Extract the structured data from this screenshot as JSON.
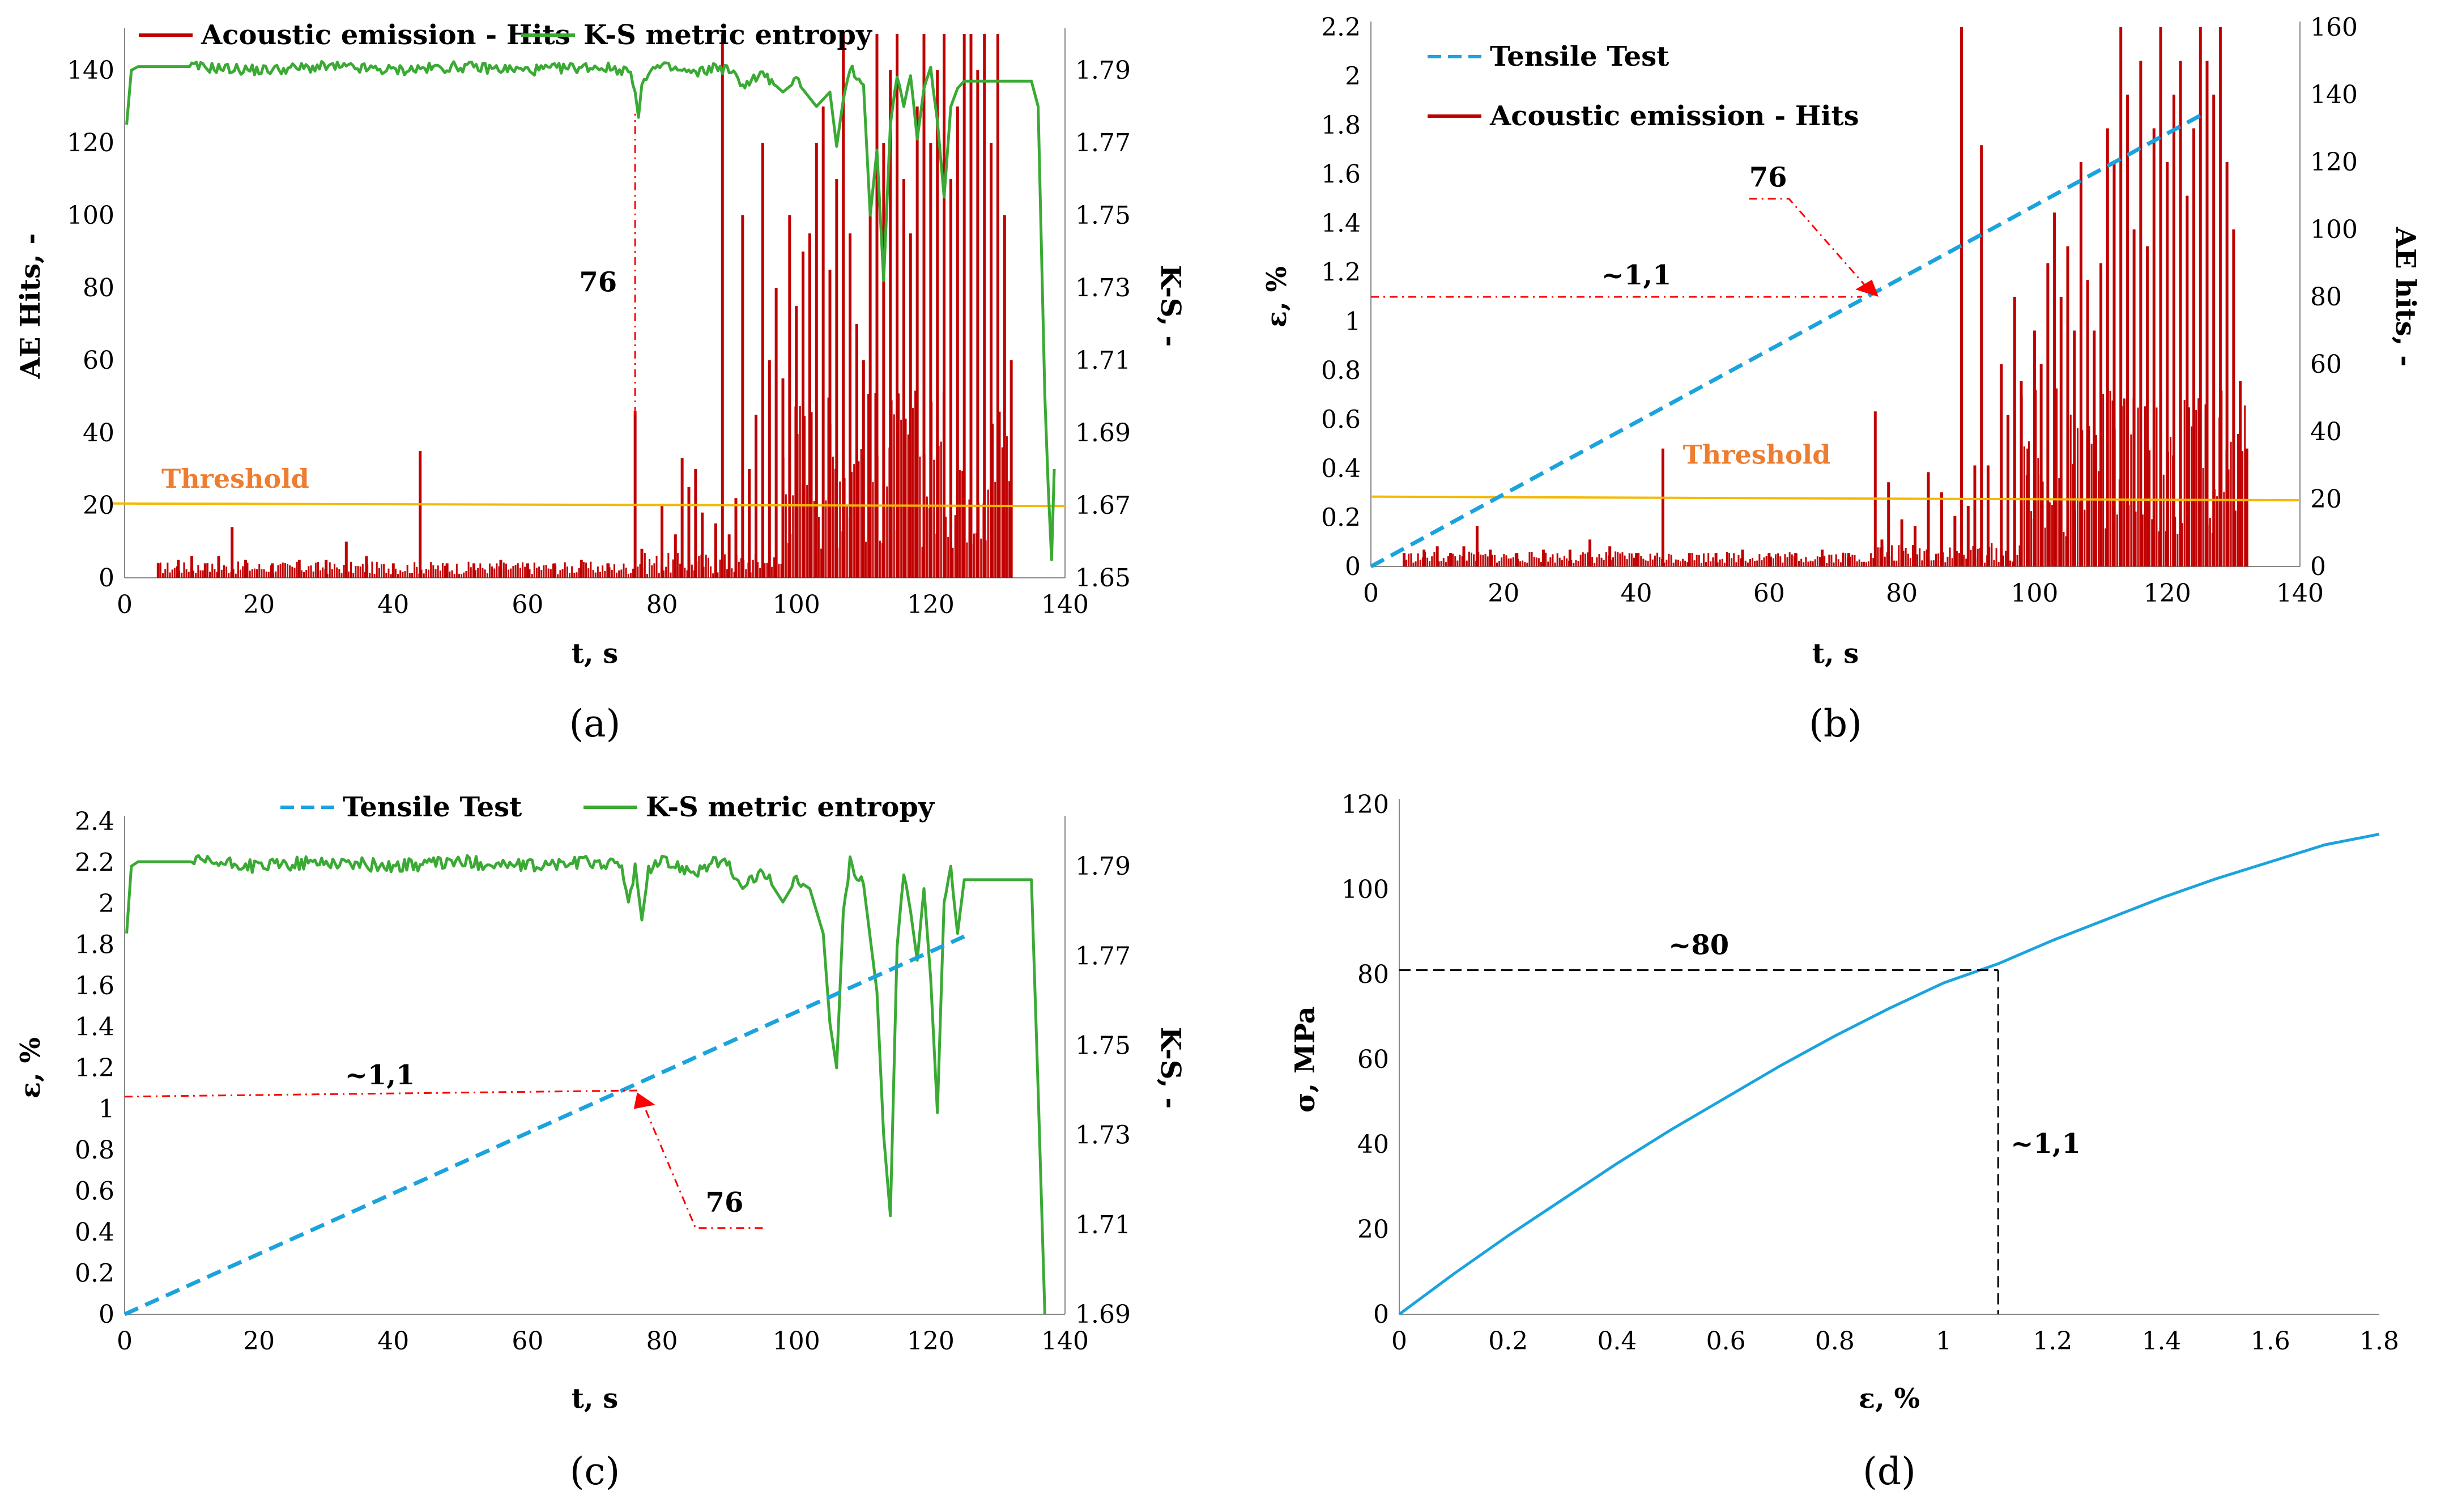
{
  "colors": {
    "ae_hits": "#c00000",
    "ks_entropy": "#3aaa35",
    "tensile": "#1ba3dd",
    "threshold_line": "#f5b800",
    "threshold_text": "#ed7d31",
    "annotation_red": "#ff0000",
    "annotation_black": "#000000"
  },
  "chart_data": [
    {
      "id": "a",
      "panel_label": "(a)",
      "type": "line",
      "xlabel": "t, s",
      "ylabel": "AE Hits, -",
      "y2label": "K-S, -",
      "xlim": [
        0,
        140
      ],
      "ylim": [
        0,
        150
      ],
      "y2lim": [
        1.65,
        1.8
      ],
      "xticks": [
        "0",
        "20",
        "40",
        "60",
        "80",
        "100",
        "120",
        "140"
      ],
      "yticks": [
        "0",
        "20",
        "40",
        "60",
        "80",
        "100",
        "120",
        "140"
      ],
      "y2ticks": [
        "1.65",
        "1.67",
        "1.69",
        "1.71",
        "1.73",
        "1.75",
        "1.77",
        "1.79"
      ],
      "legend": [
        "Acoustic emission - Hits",
        "K-S metric entropy"
      ],
      "threshold": {
        "label": "Threshold",
        "y_start": 20.5,
        "y_end": 19.8
      },
      "annotation": {
        "text": "76",
        "x": 76
      },
      "series": [
        {
          "name": "Acoustic emission - Hits",
          "axis": "left",
          "style": "bars",
          "spikes": [
            [
              5,
              4
            ],
            [
              8,
              5
            ],
            [
              10,
              6
            ],
            [
              12,
              4
            ],
            [
              14,
              6
            ],
            [
              16,
              14
            ],
            [
              18,
              5
            ],
            [
              22,
              4
            ],
            [
              26,
              5
            ],
            [
              30,
              5
            ],
            [
              33,
              10
            ],
            [
              36,
              6
            ],
            [
              40,
              4
            ],
            [
              44,
              35
            ],
            [
              48,
              4
            ],
            [
              52,
              4
            ],
            [
              56,
              5
            ],
            [
              60,
              4
            ],
            [
              64,
              4
            ],
            [
              68,
              5
            ],
            [
              72,
              4
            ],
            [
              76,
              46
            ],
            [
              77,
              8
            ],
            [
              80,
              20
            ],
            [
              82,
              12
            ],
            [
              83,
              33
            ],
            [
              84,
              25
            ],
            [
              85,
              30
            ],
            [
              86,
              18
            ],
            [
              88,
              15
            ],
            [
              89,
              150
            ],
            [
              90,
              12
            ],
            [
              91,
              22
            ],
            [
              92,
              100
            ],
            [
              93,
              30
            ],
            [
              94,
              45
            ],
            [
              95,
              120
            ],
            [
              96,
              60
            ],
            [
              97,
              80
            ],
            [
              98,
              55
            ],
            [
              99,
              100
            ],
            [
              100,
              75
            ],
            [
              101,
              90
            ],
            [
              102,
              95
            ],
            [
              103,
              120
            ],
            [
              104,
              130
            ],
            [
              105,
              85
            ],
            [
              106,
              110
            ],
            [
              107,
              150
            ],
            [
              108,
              95
            ],
            [
              109,
              70
            ],
            [
              110,
              60
            ],
            [
              111,
              100
            ],
            [
              112,
              150
            ],
            [
              113,
              120
            ],
            [
              114,
              140
            ],
            [
              115,
              150
            ],
            [
              116,
              110
            ],
            [
              117,
              95
            ],
            [
              118,
              130
            ],
            [
              119,
              150
            ],
            [
              120,
              120
            ],
            [
              121,
              140
            ],
            [
              122,
              150
            ],
            [
              123,
              110
            ],
            [
              124,
              130
            ],
            [
              125,
              150
            ],
            [
              126,
              150
            ],
            [
              127,
              140
            ],
            [
              128,
              150
            ],
            [
              129,
              120
            ],
            [
              130,
              150
            ],
            [
              131,
              100
            ],
            [
              132,
              60
            ]
          ],
          "note": "dense red fill between ~100 s and ~132 s reaching 40-60"
        },
        {
          "name": "K-S metric entropy",
          "axis": "right",
          "style": "line",
          "x": [
            0.3,
            1,
            2,
            10,
            20,
            30,
            40,
            50,
            60,
            70,
            75,
            76,
            76.5,
            77,
            78,
            80,
            85,
            88,
            90,
            92,
            95,
            98,
            100,
            103,
            105,
            106,
            107,
            108,
            110,
            111,
            112,
            113,
            114,
            115,
            116,
            117,
            118,
            119,
            120,
            121,
            122,
            123,
            124,
            125,
            126,
            128,
            130,
            132,
            134,
            135,
            136,
            137,
            137.5,
            138,
            138.4
          ],
          "y": [
            1.775,
            1.79,
            1.791,
            1.791,
            1.79,
            1.791,
            1.79,
            1.791,
            1.79,
            1.791,
            1.79,
            1.784,
            1.777,
            1.786,
            1.79,
            1.791,
            1.789,
            1.791,
            1.79,
            1.786,
            1.789,
            1.784,
            1.787,
            1.78,
            1.784,
            1.769,
            1.782,
            1.791,
            1.786,
            1.75,
            1.768,
            1.732,
            1.775,
            1.789,
            1.78,
            1.789,
            1.771,
            1.785,
            1.79,
            1.776,
            1.755,
            1.78,
            1.785,
            1.787,
            1.787,
            1.787,
            1.787,
            1.787,
            1.787,
            1.787,
            1.78,
            1.7,
            1.675,
            1.655,
            1.68
          ]
        }
      ]
    },
    {
      "id": "b",
      "panel_label": "(b)",
      "type": "line",
      "xlabel": "t, s",
      "ylabel": "ε, %",
      "y2label": "AE hits, -",
      "xlim": [
        0,
        140
      ],
      "ylim": [
        0,
        2.2
      ],
      "y2lim": [
        0,
        160
      ],
      "xticks": [
        "0",
        "20",
        "40",
        "60",
        "80",
        "100",
        "120",
        "140"
      ],
      "yticks": [
        "0",
        "0.2",
        "0.4",
        "0.6",
        "0.8",
        "1",
        "1.2",
        "1.4",
        "1.6",
        "1.8",
        "2",
        "2.2"
      ],
      "y2ticks": [
        "0",
        "20",
        "40",
        "60",
        "80",
        "100",
        "120",
        "140",
        "160"
      ],
      "legend": [
        "Tensile Test",
        "Acoustic emission - Hits"
      ],
      "threshold": {
        "label": "Threshold",
        "y_start": 0.285,
        "y_end": 0.27
      },
      "annotation": {
        "text": "76",
        "level_text": "~1,1",
        "x": 76,
        "y": 1.1
      },
      "series": [
        {
          "name": "Tensile Test",
          "axis": "left",
          "style": "dashed",
          "x": [
            0,
            125
          ],
          "y": [
            0,
            1.84
          ]
        },
        {
          "name": "Acoustic emission - Hits",
          "axis": "right",
          "style": "bars",
          "spikes": [
            [
              5,
              4
            ],
            [
              8,
              5
            ],
            [
              10,
              6
            ],
            [
              12,
              4
            ],
            [
              14,
              6
            ],
            [
              16,
              12
            ],
            [
              18,
              5
            ],
            [
              22,
              4
            ],
            [
              26,
              5
            ],
            [
              30,
              5
            ],
            [
              33,
              8
            ],
            [
              36,
              6
            ],
            [
              40,
              4
            ],
            [
              44,
              35
            ],
            [
              48,
              4
            ],
            [
              52,
              4
            ],
            [
              56,
              5
            ],
            [
              60,
              4
            ],
            [
              64,
              4
            ],
            [
              68,
              5
            ],
            [
              72,
              4
            ],
            [
              76,
              46
            ],
            [
              77,
              8
            ],
            [
              78,
              25
            ],
            [
              80,
              14
            ],
            [
              82,
              12
            ],
            [
              84,
              28
            ],
            [
              86,
              22
            ],
            [
              88,
              15
            ],
            [
              89,
              160
            ],
            [
              90,
              18
            ],
            [
              91,
              30
            ],
            [
              92,
              125
            ],
            [
              93,
              30
            ],
            [
              95,
              60
            ],
            [
              96,
              45
            ],
            [
              97,
              80
            ],
            [
              98,
              55
            ],
            [
              99,
              35
            ],
            [
              100,
              70
            ],
            [
              101,
              60
            ],
            [
              102,
              90
            ],
            [
              103,
              105
            ],
            [
              104,
              80
            ],
            [
              105,
              95
            ],
            [
              106,
              70
            ],
            [
              107,
              120
            ],
            [
              108,
              85
            ],
            [
              109,
              70
            ],
            [
              110,
              90
            ],
            [
              111,
              130
            ],
            [
              112,
              120
            ],
            [
              113,
              160
            ],
            [
              114,
              140
            ],
            [
              115,
              100
            ],
            [
              116,
              150
            ],
            [
              117,
              95
            ],
            [
              118,
              130
            ],
            [
              119,
              160
            ],
            [
              120,
              120
            ],
            [
              121,
              140
            ],
            [
              122,
              150
            ],
            [
              123,
              110
            ],
            [
              124,
              130
            ],
            [
              125,
              160
            ],
            [
              126,
              150
            ],
            [
              127,
              140
            ],
            [
              128,
              160
            ],
            [
              129,
              120
            ],
            [
              130,
              100
            ],
            [
              131,
              55
            ],
            [
              132,
              35
            ]
          ],
          "note": "dense red fill between ~100 s and ~132 s reaching 40-60"
        }
      ]
    },
    {
      "id": "c",
      "panel_label": "(c)",
      "type": "line",
      "xlabel": "t, s",
      "ylabel": "ε, %",
      "y2label": "K-S, -",
      "xlim": [
        0,
        140
      ],
      "ylim": [
        0,
        2.4
      ],
      "y2lim": [
        1.69,
        1.8
      ],
      "xticks": [
        "0",
        "20",
        "40",
        "60",
        "80",
        "100",
        "120",
        "140"
      ],
      "yticks": [
        "0",
        "0.2",
        "0.4",
        "0.6",
        "0.8",
        "1",
        "1.2",
        "1.4",
        "1.6",
        "1.8",
        "2",
        "2.2",
        "2.4"
      ],
      "y2ticks": [
        "1.69",
        "1.71",
        "1.73",
        "1.75",
        "1.77",
        "1.79"
      ],
      "legend": [
        "Tensile Test",
        "K-S metric entropy"
      ],
      "annotation": {
        "text": "76",
        "level_text": "~1,1",
        "x": 76,
        "y": 1.08
      },
      "series": [
        {
          "name": "Tensile Test",
          "axis": "left",
          "style": "dashed",
          "x": [
            0,
            125
          ],
          "y": [
            0,
            1.84
          ]
        },
        {
          "name": "K-S metric entropy",
          "axis": "right",
          "style": "line",
          "x": [
            0.3,
            1,
            2,
            10,
            20,
            30,
            40,
            50,
            60,
            70,
            74,
            75,
            76,
            77,
            78,
            80,
            85,
            88,
            90,
            92,
            95,
            98,
            100,
            102,
            104,
            105,
            106,
            107,
            108,
            110,
            112,
            113,
            114,
            115,
            116,
            117,
            118,
            119,
            120,
            121,
            122,
            123,
            124,
            125,
            128,
            132,
            134,
            135,
            136,
            137
          ],
          "y": [
            1.775,
            1.79,
            1.791,
            1.791,
            1.79,
            1.791,
            1.79,
            1.791,
            1.79,
            1.791,
            1.79,
            1.782,
            1.79,
            1.778,
            1.789,
            1.791,
            1.789,
            1.791,
            1.79,
            1.785,
            1.789,
            1.782,
            1.787,
            1.785,
            1.775,
            1.755,
            1.745,
            1.78,
            1.791,
            1.786,
            1.762,
            1.73,
            1.712,
            1.772,
            1.789,
            1.78,
            1.769,
            1.785,
            1.765,
            1.735,
            1.782,
            1.789,
            1.775,
            1.787,
            1.787,
            1.787,
            1.787,
            1.787,
            1.74,
            1.69
          ]
        }
      ]
    },
    {
      "id": "d",
      "panel_label": "(d)",
      "type": "line",
      "xlabel": "ε, %",
      "ylabel": "σ, MPa",
      "xlim": [
        0,
        1.8
      ],
      "ylim": [
        0,
        120
      ],
      "xticks": [
        "0",
        "0.2",
        "0.4",
        "0.6",
        "0.8",
        "1",
        "1.2",
        "1.4",
        "1.6",
        "1.8"
      ],
      "yticks": [
        "0",
        "20",
        "40",
        "60",
        "80",
        "100",
        "120"
      ],
      "annotation": {
        "x_text": "~1,1",
        "y_text": "~80",
        "x": 1.1,
        "y": 81
      },
      "series": [
        {
          "name": "stress-strain",
          "style": "line",
          "x": [
            0,
            0.1,
            0.2,
            0.3,
            0.4,
            0.5,
            0.6,
            0.7,
            0.8,
            0.9,
            1.0,
            1.1,
            1.2,
            1.3,
            1.4,
            1.5,
            1.6,
            1.7,
            1.8
          ],
          "y": [
            0,
            9.5,
            18.5,
            27,
            35.5,
            43.5,
            51,
            58.5,
            65.5,
            72,
            78,
            82.5,
            88,
            93,
            98,
            102.5,
            106.5,
            110.5,
            113
          ]
        }
      ]
    }
  ]
}
